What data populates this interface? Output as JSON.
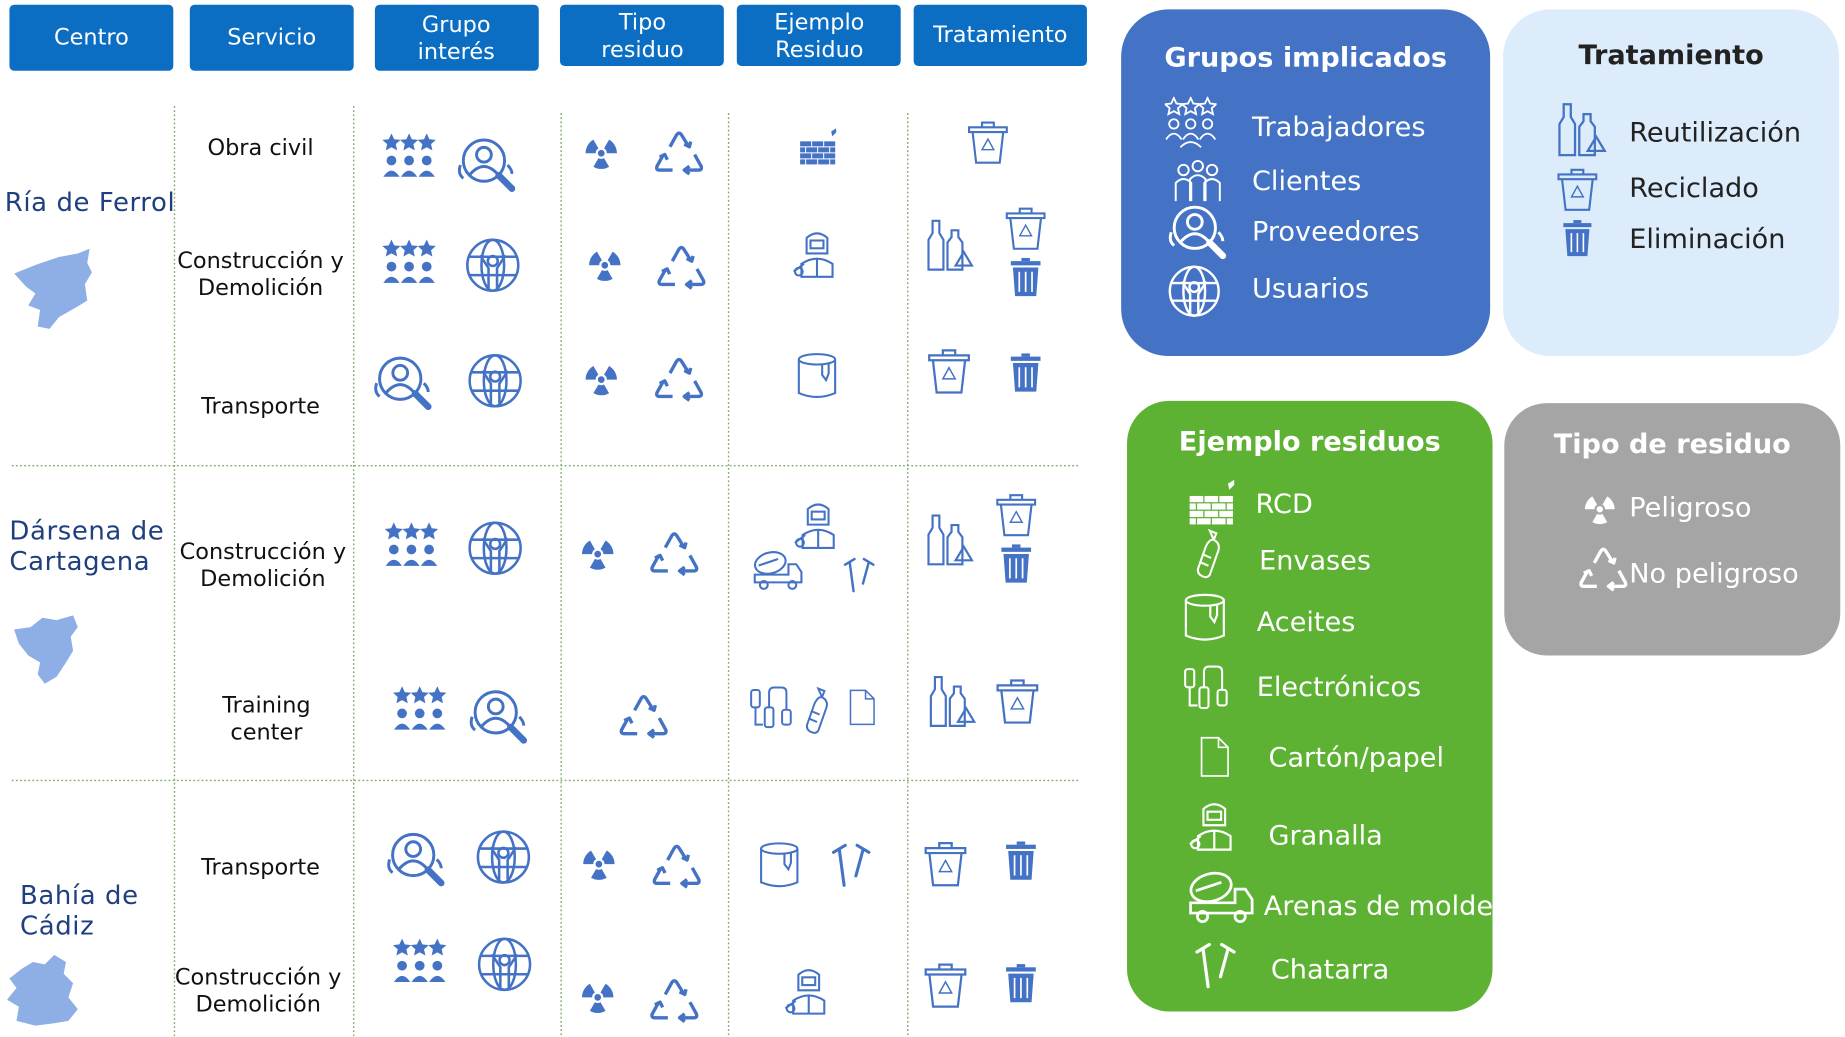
{
  "header": [
    "Centro",
    "Servicio",
    "Grupo interés",
    "Tipo residuo",
    "Ejemplo Residuo",
    "Tratamiento"
  ],
  "centros": [
    {
      "name": "Ría de Ferrol",
      "servicios": [
        "Obra civil",
        "Construcción y Demolición",
        "Transporte"
      ]
    },
    {
      "name": "Dársena de Cartagena",
      "servicios": [
        "Construcción y Demolición",
        "Training center"
      ]
    },
    {
      "name": "Bahía de Cádiz",
      "servicios": [
        "Transporte",
        "Construcción y Demolición"
      ]
    }
  ],
  "legends": {
    "grupos": {
      "title": "Grupos implicados",
      "items": [
        "Trabajadores",
        "Clientes",
        "Proveedores",
        "Usuarios"
      ]
    },
    "tratamiento": {
      "title": "Tratamiento",
      "items": [
        "Reutilización",
        "Reciclado",
        "Eliminación"
      ]
    },
    "residuos": {
      "title": "Ejemplo residuos",
      "items": [
        "RCD",
        "Envases",
        "Aceites",
        "Electrónicos",
        "Cartón/papel",
        "Granalla",
        "Arenas de moldeo",
        "Chatarra"
      ]
    },
    "tipo": {
      "title": "Tipo de residuo",
      "items": [
        "Peligroso",
        "No peligroso"
      ]
    }
  }
}
